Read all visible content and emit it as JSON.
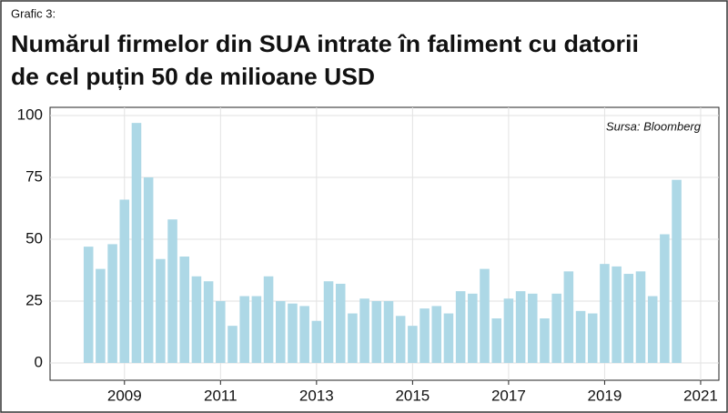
{
  "chart_data": {
    "type": "bar",
    "label": "Grafic 3:",
    "title": [
      "Numărul firmelor din SUA intrate în faliment cu datorii",
      "de cel puțin 50 de milioane USD"
    ],
    "annotation": "Sursa: Bloomberg",
    "x": [
      2008.25,
      2008.5,
      2008.75,
      2009,
      2009.25,
      2009.5,
      2009.75,
      2010,
      2010.25,
      2010.5,
      2010.75,
      2011,
      2011.25,
      2011.5,
      2011.75,
      2012,
      2012.25,
      2012.5,
      2012.75,
      2013,
      2013.25,
      2013.5,
      2013.75,
      2014,
      2014.25,
      2014.5,
      2014.75,
      2015,
      2015.25,
      2015.5,
      2015.75,
      2016,
      2016.25,
      2016.5,
      2016.75,
      2017,
      2017.25,
      2017.5,
      2017.75,
      2018,
      2018.25,
      2018.5,
      2018.75,
      2019,
      2019.25,
      2019.5,
      2019.75,
      2020,
      2020.25,
      2020.5
    ],
    "values": [
      47,
      38,
      48,
      66,
      97,
      75,
      42,
      58,
      43,
      35,
      33,
      25,
      15,
      27,
      27,
      35,
      25,
      24,
      23,
      17,
      33,
      32,
      20,
      26,
      25,
      25,
      19,
      15,
      22,
      23,
      20,
      29,
      28,
      38,
      18,
      26,
      29,
      28,
      18,
      28,
      37,
      21,
      20,
      40,
      39,
      36,
      37,
      27,
      52,
      74
    ],
    "color": "#add8e6",
    "xlim": [
      2007.45,
      2021.38
    ],
    "xticks": [
      2009,
      2011,
      2013,
      2015,
      2017,
      2019,
      2021
    ],
    "ylim": [
      -7,
      103.3
    ],
    "yticks": [
      0,
      25,
      50,
      75,
      100
    ],
    "grid": true
  }
}
